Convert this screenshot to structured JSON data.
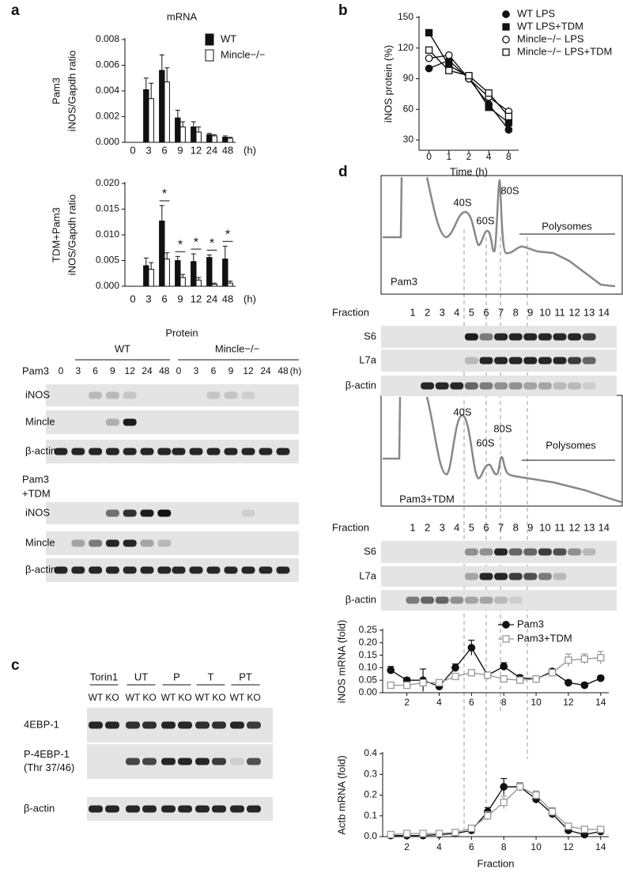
{
  "panel_labels": [
    "a",
    "b",
    "c",
    "d"
  ],
  "chart_data": [
    {
      "type": "bar",
      "title": "mRNA",
      "ylabel": [
        "Pam3",
        "iNOS/Gapdh ratio"
      ],
      "xlabel": "(h)",
      "categories": [
        0,
        3,
        6,
        9,
        12,
        24,
        48
      ],
      "series": [
        {
          "name": "WT",
          "color": "#111111",
          "values": [
            0,
            0.0041,
            0.0056,
            0.0019,
            0.0012,
            0.0006,
            0.0004
          ],
          "errors": [
            0,
            0.0009,
            0.0012,
            0.0006,
            0.0004,
            0.0001,
            0.0001
          ]
        },
        {
          "name": "Mincle−/−",
          "color": "#ffffff",
          "values": [
            0,
            0.0034,
            0.0047,
            0.0012,
            0.0008,
            0.0005,
            0.0003
          ],
          "errors": [
            0,
            0.0012,
            0.0011,
            0.0004,
            0.0004,
            0.0001,
            0.0001
          ]
        }
      ],
      "ylim": [
        0,
        0.008
      ],
      "yticks": [
        {
          "value": 0,
          "label": "0.000"
        },
        0.002,
        0.004,
        0.006,
        0.008
      ],
      "legend": "upper right"
    },
    {
      "type": "bar",
      "ylabel": [
        "TDM+Pam3",
        "iNOS/Gapdh ratio"
      ],
      "xlabel": "(h)",
      "categories": [
        0,
        3,
        6,
        9,
        12,
        24,
        48
      ],
      "series": [
        {
          "color": "#111111",
          "values": [
            0,
            0.004,
            0.0127,
            0.005,
            0.0048,
            0.0056,
            0.0053
          ],
          "errors": [
            0,
            0.0015,
            0.003,
            0.0008,
            0.0015,
            0.0005,
            0.0025
          ]
        },
        {
          "color": "#ffffff",
          "values": [
            0,
            0.0033,
            0.0053,
            0.0017,
            0.0012,
            0.0004,
            0.0006
          ],
          "errors": [
            0,
            0.0013,
            0.0012,
            0.0006,
            0.0005,
            0.0002,
            0.0004
          ]
        }
      ],
      "significance": [
        null,
        null,
        "*",
        "*",
        "*",
        "*",
        "*"
      ],
      "ylim": [
        0,
        0.02
      ],
      "yticks": [
        {
          "value": 0,
          "label": "0.000"
        },
        0.005,
        {
          "value": 0.01,
          "label": "0.010"
        },
        0.015,
        {
          "value": 0.02,
          "label": "0.020"
        }
      ]
    },
    {
      "type": "line",
      "ylabel": "iNOS protein (%)",
      "xlabel": "Time (h)",
      "categories": [
        0,
        1,
        2,
        4,
        8
      ],
      "series": [
        {
          "name": "WT LPS",
          "color": "#111111",
          "marker": "circle",
          "fill": "#111111",
          "values": [
            100,
            108,
            90,
            65,
            40
          ]
        },
        {
          "name": "WT LPS+TDM",
          "color": "#111111",
          "marker": "square",
          "fill": "#111111",
          "values": [
            135,
            103,
            92,
            62,
            47
          ]
        },
        {
          "name": "Mincle−/− LPS",
          "color": "#111111",
          "marker": "circle",
          "fill": "#ffffff",
          "values": [
            110,
            113,
            90,
            72,
            58
          ]
        },
        {
          "name": "Mincle−/− LPS+TDM",
          "color": "#111111",
          "marker": "square",
          "fill": "#ffffff",
          "values": [
            118,
            98,
            93,
            76,
            53
          ]
        }
      ],
      "ylim": [
        20,
        150
      ],
      "yticks": [
        30,
        60,
        90,
        120,
        150
      ],
      "legend": "upper right"
    },
    {
      "type": "line",
      "ylabel": "iNOS mRNA (fold)",
      "x": [
        1,
        2,
        3,
        4,
        5,
        6,
        7,
        8,
        9,
        10,
        11,
        12,
        13,
        14
      ],
      "xlim": [
        0.5,
        14.5
      ],
      "xticks": [
        2,
        4,
        6,
        8,
        10,
        12,
        14
      ],
      "series": [
        {
          "name": "Pam3",
          "color": "#111111",
          "marker": "circle",
          "fill": "#111111",
          "values": [
            0.09,
            0.05,
            0.05,
            0.025,
            0.1,
            0.18,
            0.07,
            0.105,
            0.06,
            0.055,
            0.085,
            0.04,
            0.03,
            0.058
          ],
          "errors": [
            0.015,
            0.01,
            0.045,
            0.005,
            0.015,
            0.03,
            0.01,
            0.015,
            0.01,
            0.01,
            0.01,
            0.01,
            0.01,
            0.01
          ]
        },
        {
          "name": "Pam3+TDM",
          "color": "#999999",
          "marker": "square",
          "fill": "#ffffff",
          "values": [
            0.03,
            0.03,
            0.04,
            0.04,
            0.065,
            0.08,
            0.07,
            0.055,
            0.05,
            0.055,
            0.08,
            0.13,
            0.135,
            0.14
          ],
          "errors": [
            0.01,
            0.01,
            0.01,
            0.01,
            0.01,
            0.01,
            0.01,
            0.01,
            0.01,
            0.01,
            0.01,
            0.025,
            0.02,
            0.025
          ]
        }
      ],
      "ylim": [
        0,
        0.25
      ],
      "yticks": [
        {
          "value": 0,
          "label": "0.00"
        },
        0.05,
        {
          "value": 0.1,
          "label": "0.10"
        },
        0.15,
        {
          "value": 0.2,
          "label": "0.20"
        },
        0.25
      ],
      "legend": "upper right"
    },
    {
      "type": "line",
      "ylabel": "Actb mRNA (fold)",
      "xlabel": "Fraction",
      "x": [
        1,
        2,
        3,
        4,
        5,
        6,
        7,
        8,
        9,
        10,
        11,
        12,
        13,
        14
      ],
      "xlim": [
        0.5,
        14.5
      ],
      "xticks": [
        2,
        4,
        6,
        8,
        10,
        12,
        14
      ],
      "series": [
        {
          "color": "#111111",
          "marker": "circle",
          "fill": "#111111",
          "values": [
            0.005,
            0.005,
            0.005,
            0.01,
            0.015,
            0.03,
            0.12,
            0.24,
            0.24,
            0.18,
            0.11,
            0.03,
            0.01,
            0.025
          ],
          "errors": [
            0.005,
            0.005,
            0.005,
            0.005,
            0.005,
            0.01,
            0.02,
            0.04,
            0.02,
            0.02,
            0.02,
            0.01,
            0.005,
            0.005
          ]
        },
        {
          "color": "#999999",
          "marker": "square",
          "fill": "#ffffff",
          "values": [
            0.01,
            0.015,
            0.015,
            0.015,
            0.02,
            0.04,
            0.1,
            0.165,
            0.24,
            0.2,
            0.12,
            0.05,
            0.035,
            0.035
          ],
          "errors": [
            0.005,
            0.005,
            0.005,
            0.005,
            0.005,
            0.01,
            0.02,
            0.03,
            0.02,
            0.02,
            0.02,
            0.01,
            0.01,
            0.01
          ]
        }
      ],
      "ylim": [
        0,
        0.4
      ],
      "yticks": [
        {
          "value": 0,
          "label": "0.0"
        },
        0.1,
        0.2,
        0.3,
        0.4
      ]
    }
  ],
  "protein_blot": {
    "title": "Protein",
    "groups": [
      "WT",
      "Mincle−/−"
    ],
    "times": [
      0,
      3,
      6,
      9,
      12,
      24,
      48
    ],
    "unit": "(h)",
    "panels": [
      {
        "label": [
          "Pam3"
        ],
        "rows": [
          "iNOS",
          "Mincle",
          "β-actin"
        ]
      },
      {
        "label": [
          "Pam3",
          "+TDM"
        ],
        "rows": [
          "iNOS",
          "Mincle",
          "β-actin"
        ]
      }
    ]
  },
  "phospho_blot": {
    "groups": [
      "Torin1",
      "UT",
      "P",
      "T",
      "PT"
    ],
    "lanes": [
      "WT",
      "KO"
    ],
    "rows": [
      [
        "4EBP-1"
      ],
      [
        "P-4EBP-1",
        "(Thr 37/46)"
      ],
      [
        "β-actin"
      ]
    ]
  },
  "polysome_profiles": [
    {
      "condition": "Pam3",
      "peaks": [
        "40S",
        "60S",
        "80S"
      ],
      "region": "Polysomes",
      "fraction_label": "Fraction",
      "fractions": [
        1,
        2,
        3,
        4,
        5,
        6,
        7,
        8,
        9,
        10,
        11,
        12,
        13,
        14
      ],
      "blots": [
        "S6",
        "L7a",
        "β-actin"
      ]
    },
    {
      "condition": "Pam3+TDM",
      "peaks": [
        "40S",
        "60S",
        "80S"
      ],
      "region": "Polysomes",
      "fraction_label": "Fraction",
      "fractions": [
        1,
        2,
        3,
        4,
        5,
        6,
        7,
        8,
        9,
        10,
        11,
        12,
        13,
        14
      ],
      "blots": [
        "S6",
        "L7a",
        "β-actin"
      ]
    }
  ]
}
